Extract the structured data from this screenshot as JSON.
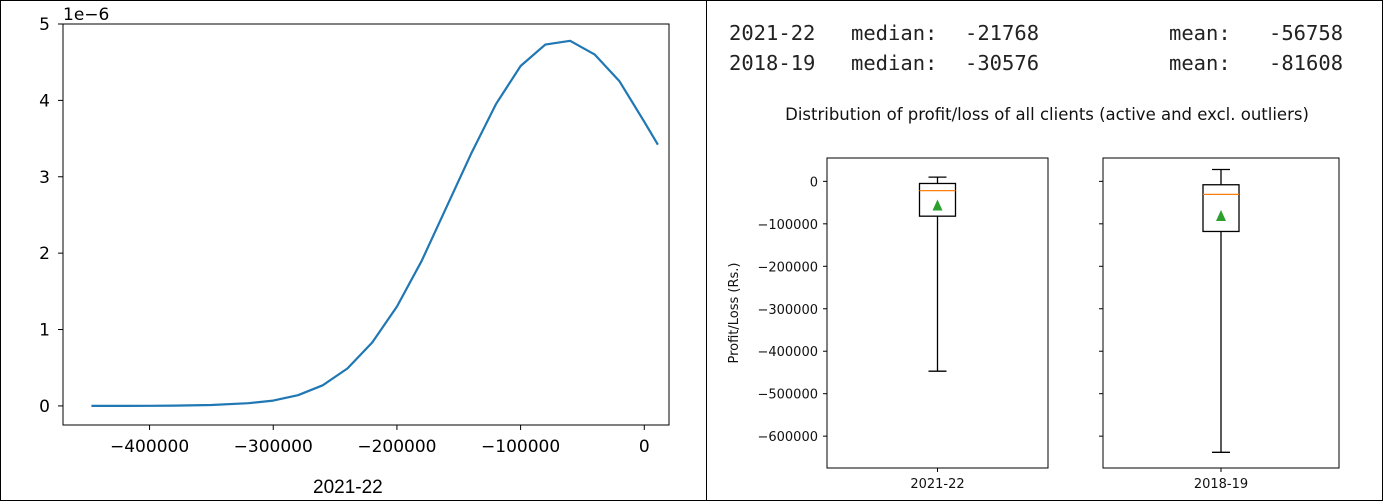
{
  "left_caption": "2021-22",
  "stats": [
    {
      "label": "2021-22",
      "median_label": "median:",
      "median": "-21768",
      "mean_label": "mean:",
      "mean": "-56758"
    },
    {
      "label": "2018-19",
      "median_label": "median:",
      "median": "-30576",
      "mean_label": "mean:",
      "mean": "-81608"
    }
  ],
  "colors": {
    "line": "#1f77b4",
    "median": "#ff7f0e",
    "mean": "#2ca02c",
    "axis": "#000000"
  },
  "chart_data": [
    {
      "type": "line",
      "title": "",
      "xlabel": "",
      "ylabel": "",
      "offset_label": "1e−6",
      "xlim": [
        -470000,
        20000
      ],
      "ylim": [
        -0.25,
        5.0
      ],
      "xticks": [
        -400000,
        -300000,
        -200000,
        -100000,
        0
      ],
      "xtick_labels": [
        "−400000",
        "−300000",
        "−200000",
        "−100000",
        "0"
      ],
      "yticks": [
        0,
        1,
        2,
        3,
        4,
        5
      ],
      "ytick_labels": [
        "0",
        "1",
        "2",
        "3",
        "4",
        "5"
      ],
      "x": [
        -447000,
        -420000,
        -400000,
        -380000,
        -350000,
        -320000,
        -300000,
        -280000,
        -260000,
        -240000,
        -220000,
        -200000,
        -180000,
        -160000,
        -140000,
        -120000,
        -100000,
        -80000,
        -60000,
        -40000,
        -20000,
        0,
        11000
      ],
      "y": [
        0.0,
        0.0,
        0.002,
        0.004,
        0.012,
        0.036,
        0.07,
        0.14,
        0.27,
        0.49,
        0.83,
        1.3,
        1.9,
        2.6,
        3.3,
        3.95,
        4.45,
        4.73,
        4.78,
        4.6,
        4.25,
        3.72,
        3.42
      ]
    },
    {
      "type": "box",
      "title": "Distribution of profit/loss of all clients (active and excl. outliers)",
      "ylabel": "Profit/Loss (Rs.)",
      "ylim": [
        -675000,
        55000
      ],
      "yticks": [
        0,
        -100000,
        -200000,
        -300000,
        -400000,
        -500000,
        -600000
      ],
      "ytick_labels": [
        "0",
        "−100000",
        "−200000",
        "−300000",
        "−400000",
        "−500000",
        "−600000"
      ],
      "boxes": [
        {
          "category": "2021-22",
          "whisker_high": 10000,
          "q3": -5000,
          "median": -21768,
          "mean": -56758,
          "q1": -82000,
          "whisker_low": -447000
        },
        {
          "category": "2018-19",
          "whisker_high": 28000,
          "q3": -8000,
          "median": -30576,
          "mean": -81608,
          "q1": -118000,
          "whisker_low": -638000
        }
      ]
    }
  ]
}
